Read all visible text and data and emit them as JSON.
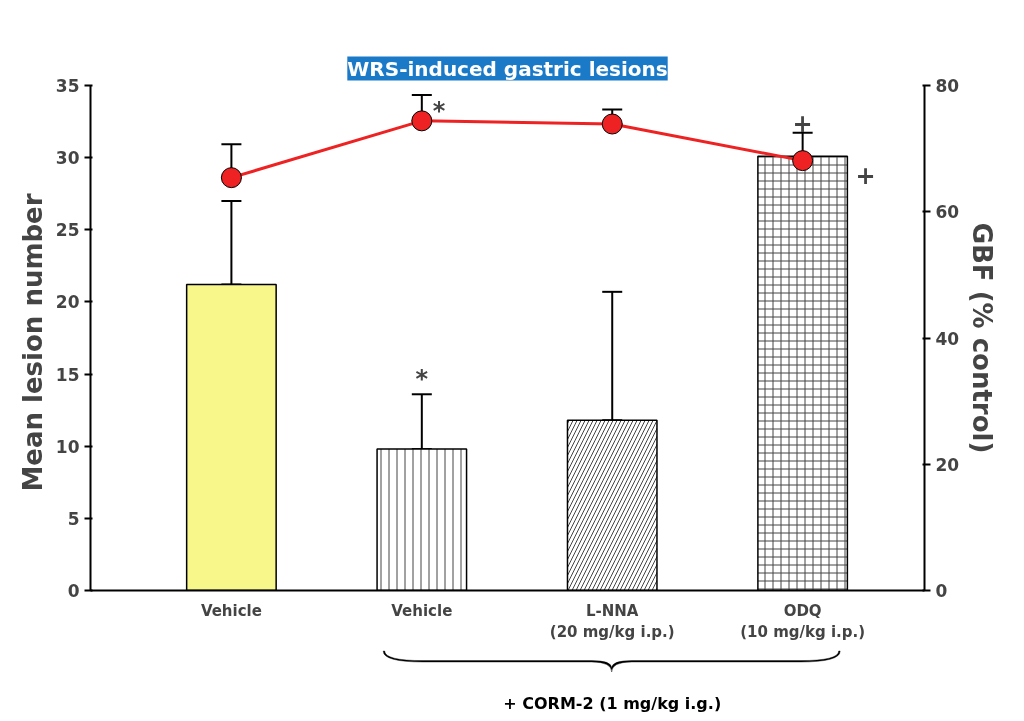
{
  "chart_data": {
    "type": "bar",
    "title": "WRS-induced gastric lesions",
    "ylabel": "Mean lesion  number",
    "y2label": "GBF (% control)",
    "categories": [
      "Vehicle",
      "Vehicle",
      "L-NNA\n(20 mg/kg i.p.)",
      "ODQ\n(10 mg/kg i.p.)"
    ],
    "series": [
      {
        "colors": [
          "#f8f88a",
          "#ffffff",
          "#ffffff",
          "#ffffff"
        ],
        "values": [
          21.2,
          9.8,
          11.8,
          30.1
        ],
        "errors": [
          [
            21.2,
            27.0
          ],
          [
            9.8,
            13.6
          ],
          [
            11.8,
            20.7
          ],
          null
        ]
      },
      {
        "type": "line",
        "axis": "y2",
        "color": "#ee2222",
        "marker": "circle",
        "values": [
          65.4,
          74.4,
          73.9,
          68.1
        ],
        "errors": [
          [
            65.4,
            70.7
          ],
          [
            74.4,
            78.5
          ],
          [
            73.9,
            76.2
          ],
          [
            63.7,
            72.5
          ]
        ]
      }
    ],
    "ylim": [
      0,
      35
    ],
    "yticks": [
      0,
      5,
      10,
      15,
      20,
      25,
      30,
      35
    ],
    "y2lim": [
      0,
      80
    ],
    "y2ticks": [
      0,
      20,
      40,
      60,
      80
    ],
    "grid": false,
    "annotations": [
      "*",
      "*",
      "+",
      "+",
      "+ CORM-2 (1 mg/kg i.g.)"
    ]
  }
}
